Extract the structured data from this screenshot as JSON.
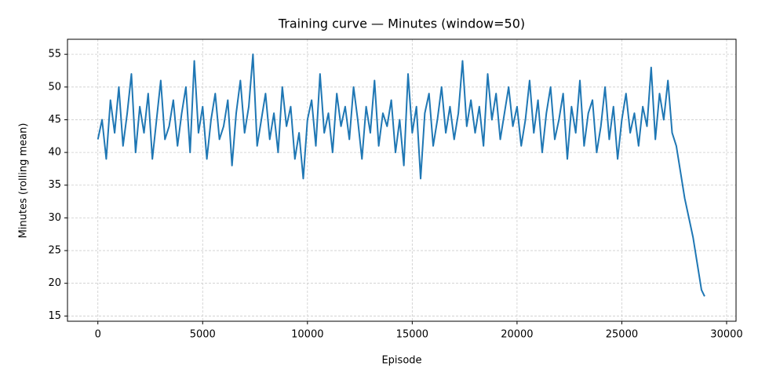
{
  "chart_data": {
    "type": "line",
    "title": "Training curve — Minutes (window=50)",
    "x_label": "Episode",
    "y_label": "Minutes (rolling mean)",
    "color": "#1f77b4",
    "grid": true,
    "xlim": [
      -1450,
      30450
    ],
    "ylim": [
      14.2,
      57.3
    ],
    "xticks": [
      0,
      5000,
      10000,
      15000,
      20000,
      25000,
      30000
    ],
    "yticks": [
      15,
      20,
      25,
      30,
      35,
      40,
      45,
      50,
      55
    ],
    "x": [
      0,
      200,
      400,
      600,
      800,
      1000,
      1200,
      1400,
      1600,
      1800,
      2000,
      2200,
      2400,
      2600,
      2800,
      3000,
      3200,
      3400,
      3600,
      3800,
      4000,
      4200,
      4400,
      4600,
      4800,
      5000,
      5200,
      5400,
      5600,
      5800,
      6000,
      6200,
      6400,
      6600,
      6800,
      7000,
      7200,
      7400,
      7600,
      7800,
      8000,
      8200,
      8400,
      8600,
      8800,
      9000,
      9200,
      9400,
      9600,
      9800,
      10000,
      10200,
      10400,
      10600,
      10800,
      11000,
      11200,
      11400,
      11600,
      11800,
      12000,
      12200,
      12400,
      12600,
      12800,
      13000,
      13200,
      13400,
      13600,
      13800,
      14000,
      14200,
      14400,
      14600,
      14800,
      15000,
      15200,
      15400,
      15600,
      15800,
      16000,
      16200,
      16400,
      16600,
      16800,
      17000,
      17200,
      17400,
      17600,
      17800,
      18000,
      18200,
      18400,
      18600,
      18800,
      19000,
      19200,
      19400,
      19600,
      19800,
      20000,
      20200,
      20400,
      20600,
      20800,
      21000,
      21200,
      21400,
      21600,
      21800,
      22000,
      22200,
      22400,
      22600,
      22800,
      23000,
      23200,
      23400,
      23600,
      23800,
      24000,
      24200,
      24400,
      24600,
      24800,
      25000,
      25200,
      25400,
      25600,
      25800,
      26000,
      26200,
      26400,
      26600,
      26800,
      27000,
      27200,
      27400,
      27600,
      27800,
      28000,
      28200,
      28400,
      28600,
      28800,
      28950
    ],
    "values": [
      42,
      45,
      39,
      48,
      43,
      50,
      41,
      46,
      52,
      40,
      47,
      43,
      49,
      39,
      45,
      51,
      42,
      44,
      48,
      41,
      46,
      50,
      40,
      54,
      43,
      47,
      39,
      45,
      49,
      42,
      44,
      48,
      38,
      46,
      51,
      43,
      47,
      55,
      41,
      45,
      49,
      42,
      46,
      40,
      50,
      44,
      47,
      39,
      43,
      36,
      45,
      48,
      41,
      52,
      43,
      46,
      40,
      49,
      44,
      47,
      42,
      50,
      45,
      39,
      47,
      43,
      51,
      41,
      46,
      44,
      48,
      40,
      45,
      38,
      52,
      43,
      47,
      36,
      46,
      49,
      41,
      45,
      50,
      43,
      47,
      42,
      46,
      54,
      44,
      48,
      43,
      47,
      41,
      52,
      45,
      49,
      42,
      46,
      50,
      44,
      47,
      41,
      45,
      51,
      43,
      48,
      40,
      46,
      50,
      42,
      45,
      49,
      39,
      47,
      43,
      51,
      41,
      46,
      48,
      40,
      44,
      50,
      42,
      47,
      39,
      45,
      49,
      43,
      46,
      41,
      47,
      44,
      53,
      42,
      49,
      45,
      51,
      43,
      41,
      37,
      33,
      30,
      27,
      23,
      19,
      18
    ]
  }
}
